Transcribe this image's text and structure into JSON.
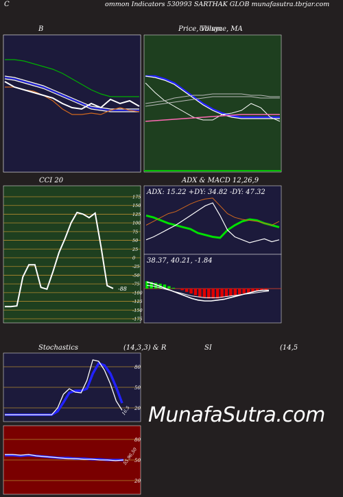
{
  "header": {
    "left_char": "C",
    "title": "ommon  Indicators 530993 SARTHAK GLOB munafasutra.tbrjar.com"
  },
  "watermark": "MunafaSutra.com",
  "colors": {
    "bg": "#231f20",
    "navy": "#1c1a3b",
    "green_panel": "#1e3f1f",
    "grid_orange": "#b38a2e",
    "red_panel": "#7a0000"
  },
  "chart_data": [
    {
      "id": "bollinger",
      "type": "line",
      "title": "B",
      "series": [
        {
          "color": "#00b000",
          "values": [
            82,
            82,
            81,
            79,
            77,
            75,
            72,
            68,
            64,
            60,
            57,
            55,
            55,
            55,
            55
          ]
        },
        {
          "color": "#ffffff",
          "values": [
            70,
            69,
            67,
            65,
            63,
            60,
            57,
            54,
            51,
            48,
            47,
            46,
            46,
            46,
            46
          ]
        },
        {
          "color": "#ffffff",
          "values": [
            68,
            67,
            65,
            63,
            61,
            58,
            55,
            52,
            49,
            46,
            45,
            44,
            44,
            44,
            44
          ]
        },
        {
          "color": "#2222ff",
          "values": [
            69,
            68,
            66,
            64,
            62,
            59,
            56,
            53,
            50,
            47,
            46,
            45,
            45,
            45,
            45
          ]
        },
        {
          "color": "#d2691e",
          "values": [
            62,
            62,
            60,
            59,
            56,
            52,
            46,
            42,
            42,
            43,
            42,
            45,
            47,
            45,
            44
          ]
        },
        {
          "color": "#ffffff",
          "values": [
            66,
            62,
            60,
            58,
            56,
            54,
            50,
            47,
            46,
            50,
            47,
            53,
            50,
            52,
            48
          ]
        }
      ]
    },
    {
      "id": "price_ma",
      "type": "line",
      "title": "Price,  Volume,  MA",
      "title_overlay": "Ullisyz",
      "series": [
        {
          "color": "#2222ff",
          "values": [
            70,
            70,
            68,
            65,
            60,
            55,
            50,
            46,
            43,
            41,
            40,
            40,
            40,
            40,
            40
          ]
        },
        {
          "color": "#ffffff",
          "values": [
            70,
            69,
            67,
            64,
            59,
            54,
            49,
            45,
            42,
            40,
            39,
            39,
            39,
            39,
            39
          ]
        },
        {
          "color": "#ffffff",
          "values": [
            65,
            58,
            52,
            48,
            44,
            40,
            38,
            38,
            42,
            43,
            45,
            50,
            47,
            40,
            37
          ]
        },
        {
          "color": "#bbbbbb",
          "values": [
            50,
            51,
            52,
            54,
            55,
            56,
            56,
            57,
            57,
            57,
            57,
            56,
            56,
            55,
            55
          ]
        },
        {
          "color": "#bbbbbb",
          "values": [
            48,
            49,
            50,
            51,
            52,
            53,
            54,
            55,
            55,
            55,
            55,
            55,
            54,
            54,
            54
          ]
        },
        {
          "color": "#ff69b4",
          "values": [
            37,
            37.5,
            38,
            38.5,
            39,
            39.5,
            40,
            40.5,
            41,
            41.5,
            42,
            42,
            42,
            42,
            42
          ]
        }
      ]
    },
    {
      "id": "cci",
      "type": "line",
      "title": "CCI 20",
      "ylim": [
        -175,
        175
      ],
      "tick_labels": [
        "175",
        "150",
        "125",
        "100",
        "75",
        "50",
        "25",
        "0",
        "-25",
        "-50",
        "-75",
        "-100",
        "-125",
        "-150",
        "-175"
      ],
      "last_label": "-88",
      "series": [
        {
          "color": "#ffffff",
          "values": [
            -140,
            -140,
            -138,
            -55,
            -20,
            -20,
            -85,
            -90,
            -40,
            15,
            55,
            100,
            130,
            125,
            115,
            128,
            30,
            -80,
            -88
          ]
        }
      ]
    },
    {
      "id": "adx",
      "type": "line",
      "title": "ADX  & MACD 12,26,9",
      "readout": "ADX: 15.22  +DY: 34.82  -DY: 47.32",
      "series": [
        {
          "name": "+DY",
          "color": "#00e000",
          "values": [
            40,
            38,
            35,
            32,
            30,
            28,
            26,
            22,
            20,
            18,
            17,
            25,
            30,
            34,
            36,
            35,
            32,
            30,
            28
          ]
        },
        {
          "name": "-DY",
          "color": "#d2691e",
          "values": [
            30,
            34,
            38,
            42,
            44,
            48,
            52,
            55,
            57,
            58,
            50,
            42,
            38,
            36,
            35,
            34,
            32,
            30,
            34
          ]
        },
        {
          "name": "ADX",
          "color": "#ffffff",
          "values": [
            15,
            18,
            22,
            26,
            30,
            35,
            40,
            45,
            50,
            53,
            40,
            25,
            18,
            15,
            12,
            14,
            16,
            13,
            15
          ]
        }
      ]
    },
    {
      "id": "macd",
      "type": "bar",
      "title": "",
      "readout": "38.37,  40.21,  -1.84",
      "hist_colors": {
        "positive": "#00e000",
        "negative": "#e00000"
      },
      "series": [
        {
          "name": "histogram",
          "values": [
            9,
            8,
            7,
            6,
            5,
            3,
            1,
            0,
            -2,
            -4,
            -6,
            -8,
            -10,
            -11,
            -12,
            -12,
            -12,
            -11,
            -10,
            -9,
            -8,
            -7,
            -6,
            -5,
            -4,
            -3,
            -2,
            -2
          ]
        },
        {
          "name": "macd",
          "color": "#ffffff",
          "values": [
            8,
            6,
            3,
            0,
            -3,
            -6,
            -9,
            -12,
            -14,
            -15,
            -15,
            -14,
            -13,
            -11,
            -9,
            -7,
            -5,
            -3,
            -2,
            -2
          ]
        },
        {
          "name": "signal",
          "color": "#ffffff",
          "values": [
            4,
            3,
            1,
            -1,
            -3,
            -5,
            -7,
            -9,
            -10,
            -11,
            -11,
            -11,
            -10,
            -9,
            -8,
            -7,
            -6,
            -5,
            -4,
            -3
          ]
        }
      ]
    },
    {
      "id": "stochastics",
      "type": "line",
      "title": "Stochastics",
      "params": "(14,3,3) & R",
      "ylim": [
        0,
        100
      ],
      "tick_labels": [
        "80",
        "50",
        "20"
      ],
      "last_label": "16.5",
      "series": [
        {
          "color": "#2222ff",
          "values": [
            10,
            10,
            10,
            10,
            10,
            10,
            10,
            10,
            10,
            15,
            28,
            42,
            45,
            45,
            48,
            70,
            85,
            82,
            70,
            50,
            27
          ]
        },
        {
          "color": "#ffffff",
          "values": [
            10,
            10,
            10,
            10,
            10,
            10,
            10,
            10,
            10,
            20,
            40,
            48,
            43,
            42,
            60,
            90,
            88,
            75,
            55,
            30,
            16.5
          ]
        }
      ]
    },
    {
      "id": "rsi",
      "type": "line",
      "title": "SI",
      "params": "(14,5",
      "ylim": [
        0,
        100
      ],
      "tick_labels": [
        "80",
        "50",
        "20"
      ],
      "last_label": "55.96,50",
      "series": [
        {
          "color": "#2222ff",
          "values": [
            57,
            57,
            56,
            57,
            56,
            55,
            54,
            53,
            53,
            52,
            52,
            51,
            51,
            50,
            50,
            50
          ]
        },
        {
          "color": "#ffffff",
          "values": [
            58,
            58,
            57,
            58,
            56,
            55,
            54,
            53,
            52,
            52,
            51,
            51,
            50,
            50,
            49,
            50
          ]
        }
      ]
    }
  ]
}
